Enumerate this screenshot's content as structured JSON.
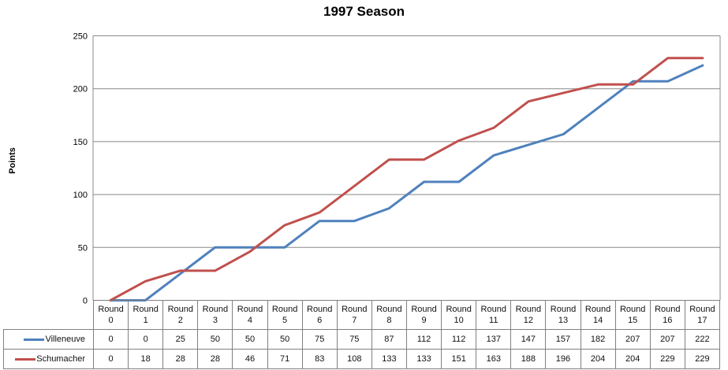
{
  "chart_data": {
    "type": "line",
    "title": "1997 Season",
    "ylabel": "Points",
    "ylim": [
      0,
      250
    ],
    "yticks": [
      0,
      50,
      100,
      150,
      200,
      250
    ],
    "grid": true,
    "legend_position": "data-table-left",
    "categories": [
      "Round 0",
      "Round 1",
      "Round 2",
      "Round 3",
      "Round 4",
      "Round 5",
      "Round 6",
      "Round 7",
      "Round 8",
      "Round 9",
      "Round 10",
      "Round 11",
      "Round 12",
      "Round 13",
      "Round 14",
      "Round 15",
      "Round 16",
      "Round 17"
    ],
    "series": [
      {
        "name": "Villeneuve",
        "color": "#4F81BD",
        "values": [
          0,
          0,
          25,
          50,
          50,
          50,
          75,
          75,
          87,
          112,
          112,
          137,
          147,
          157,
          182,
          207,
          207,
          222
        ]
      },
      {
        "name": "Schumacher",
        "color": "#C0504D",
        "values": [
          0,
          18,
          28,
          28,
          46,
          71,
          83,
          108,
          133,
          133,
          151,
          163,
          188,
          196,
          204,
          204,
          229,
          229
        ]
      }
    ]
  },
  "colors": {
    "grid": "#898989",
    "axis": "#898989",
    "table_border": "#808080",
    "text": "#000000",
    "background": "#ffffff"
  }
}
